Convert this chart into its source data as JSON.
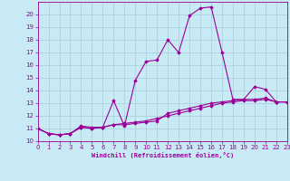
{
  "xlabel": "Windchill (Refroidissement éolien,°C)",
  "x": [
    0,
    1,
    2,
    3,
    4,
    5,
    6,
    7,
    8,
    9,
    10,
    11,
    12,
    13,
    14,
    15,
    16,
    17,
    18,
    19,
    20,
    21,
    22,
    23
  ],
  "line1": [
    11.0,
    10.6,
    10.5,
    10.6,
    11.2,
    11.1,
    11.1,
    13.2,
    11.2,
    14.8,
    16.3,
    16.4,
    18.0,
    17.0,
    19.9,
    20.5,
    20.6,
    17.0,
    13.3,
    13.3,
    14.3,
    14.1,
    13.1,
    13.1
  ],
  "line2": [
    11.0,
    10.6,
    10.5,
    10.6,
    11.1,
    11.0,
    11.1,
    11.3,
    11.3,
    11.4,
    11.5,
    11.6,
    12.2,
    12.4,
    12.6,
    12.8,
    13.0,
    13.1,
    13.2,
    13.3,
    13.3,
    13.4,
    13.1,
    13.1
  ],
  "line3": [
    11.0,
    10.6,
    10.5,
    10.6,
    11.1,
    11.0,
    11.1,
    11.3,
    11.4,
    11.5,
    11.6,
    11.8,
    12.0,
    12.2,
    12.4,
    12.6,
    12.8,
    13.0,
    13.1,
    13.2,
    13.2,
    13.3,
    13.1,
    13.1
  ],
  "line_color": "#990099",
  "bg_color": "#c8eaf4",
  "grid_color": "#aaccdd",
  "ylim": [
    10,
    21
  ],
  "xlim": [
    0,
    23
  ],
  "yticks": [
    10,
    11,
    12,
    13,
    14,
    15,
    16,
    17,
    18,
    19,
    20
  ],
  "xticks": [
    0,
    1,
    2,
    3,
    4,
    5,
    6,
    7,
    8,
    9,
    10,
    11,
    12,
    13,
    14,
    15,
    16,
    17,
    18,
    19,
    20,
    21,
    22,
    23
  ],
  "marker": "D",
  "markersize": 1.8,
  "linewidth": 0.8,
  "tick_fontsize": 5.0,
  "xlabel_fontsize": 5.0
}
